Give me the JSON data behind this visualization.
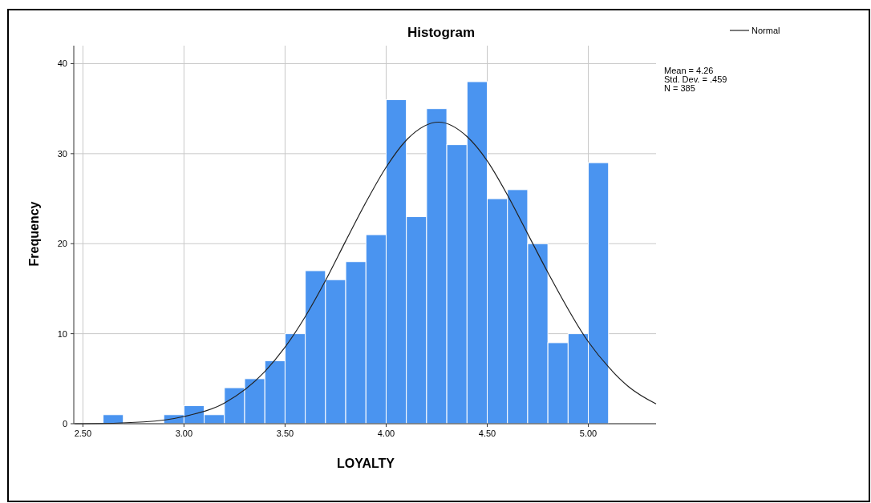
{
  "chart_data": {
    "type": "histogram",
    "title": "Histogram",
    "xlabel": "LOYALTY",
    "ylabel": "Frequency",
    "bins": [
      2.6,
      2.7,
      2.8,
      2.9,
      3.0,
      3.1,
      3.2,
      3.3,
      3.4,
      3.5,
      3.6,
      3.7,
      3.8,
      3.9,
      4.0,
      4.1,
      4.2,
      4.3,
      4.4,
      4.5,
      4.6,
      4.7,
      4.8,
      4.9,
      5.0,
      5.1
    ],
    "series": [
      {
        "color": "#4a94f0",
        "values": [
          1,
          0,
          0,
          1,
          2,
          1,
          4,
          5,
          7,
          10,
          17,
          16,
          18,
          21,
          36,
          23,
          35,
          31,
          38,
          25,
          26,
          20,
          9,
          10,
          29
        ]
      },
      {
        "type": "line",
        "name": "Normal",
        "color": "#222222",
        "x": [
          2.46,
          2.5,
          2.8,
          3.0,
          3.2,
          3.4,
          3.5,
          3.6,
          3.7,
          3.8,
          3.9,
          4.0,
          4.1,
          4.26,
          4.4,
          4.5,
          4.6,
          4.7,
          4.8,
          5.0,
          5.1,
          5.2,
          5.335
        ],
        "values": [
          0,
          0,
          0.2,
          0.8,
          2.3,
          5.8,
          8.5,
          11.9,
          15.9,
          20.3,
          24.6,
          28.5,
          31.5,
          33.5,
          31.9,
          29.2,
          25.4,
          21.1,
          16.8,
          9.1,
          6.3,
          4.1,
          2.2
        ]
      }
    ],
    "xlim": [
      2.455,
      5.335
    ],
    "ylim": [
      0,
      42
    ],
    "xticks": [
      {
        "value": 2.5,
        "label": "2.50"
      },
      {
        "value": 3,
        "label": "3.00"
      },
      {
        "value": 3.5,
        "label": "3.50"
      },
      {
        "value": 4,
        "label": "4.00"
      },
      {
        "value": 4.5,
        "label": "4.50"
      },
      {
        "value": 5,
        "label": "5.00"
      }
    ],
    "yticks": [
      0,
      10,
      20,
      30,
      40
    ],
    "grid": true,
    "legend": "top right",
    "annotations": [
      "Mean = 4.26",
      "Std. Dev. = .459",
      "N = 385"
    ]
  }
}
